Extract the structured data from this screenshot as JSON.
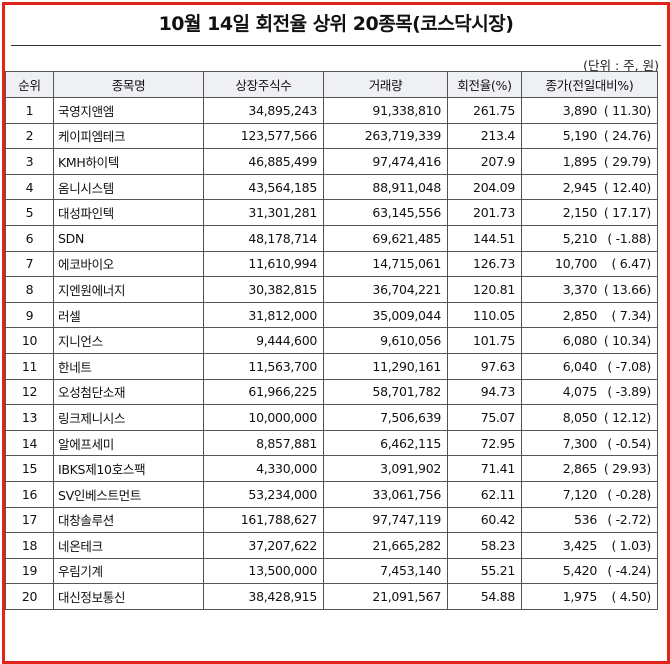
{
  "title": "10월 14일 회전율 상위 20종목(코스닥시장)",
  "unit_note": "(단위 : 주, 원)",
  "headers": [
    "순위",
    "종목명",
    "상장주식수",
    "거래량",
    "회전율(%)",
    "종가(전일대비%)"
  ],
  "rows": [
    {
      "rank": "1",
      "name": "국영지앤엠",
      "listed": "34,895,243",
      "volume": "91,338,810",
      "turnover": "261.75",
      "price": "3,890",
      "change": "( 11.30)"
    },
    {
      "rank": "2",
      "name": "케이피엠테크",
      "listed": "123,577,566",
      "volume": "263,719,339",
      "turnover": "213.4",
      "price": "5,190",
      "change": "( 24.76)"
    },
    {
      "rank": "3",
      "name": "KMH하이텍",
      "listed": "46,885,499",
      "volume": "97,474,416",
      "turnover": "207.9",
      "price": "1,895",
      "change": "( 29.79)"
    },
    {
      "rank": "4",
      "name": "옴니시스템",
      "listed": "43,564,185",
      "volume": "88,911,048",
      "turnover": "204.09",
      "price": "2,945",
      "change": "( 12.40)"
    },
    {
      "rank": "5",
      "name": "대성파인텍",
      "listed": "31,301,281",
      "volume": "63,145,556",
      "turnover": "201.73",
      "price": "2,150",
      "change": "( 17.17)"
    },
    {
      "rank": "6",
      "name": "SDN",
      "listed": "48,178,714",
      "volume": "69,621,485",
      "turnover": "144.51",
      "price": "5,210",
      "change": "( -1.88)"
    },
    {
      "rank": "7",
      "name": "에코바이오",
      "listed": "11,610,994",
      "volume": "14,715,061",
      "turnover": "126.73",
      "price": "10,700",
      "change": "( 6.47)"
    },
    {
      "rank": "8",
      "name": "지엔원에너지",
      "listed": "30,382,815",
      "volume": "36,704,221",
      "turnover": "120.81",
      "price": "3,370",
      "change": "( 13.66)"
    },
    {
      "rank": "9",
      "name": "러셀",
      "listed": "31,812,000",
      "volume": "35,009,044",
      "turnover": "110.05",
      "price": "2,850",
      "change": "( 7.34)"
    },
    {
      "rank": "10",
      "name": "지니언스",
      "listed": "9,444,600",
      "volume": "9,610,056",
      "turnover": "101.75",
      "price": "6,080",
      "change": "( 10.34)"
    },
    {
      "rank": "11",
      "name": "한네트",
      "listed": "11,563,700",
      "volume": "11,290,161",
      "turnover": "97.63",
      "price": "6,040",
      "change": "( -7.08)"
    },
    {
      "rank": "12",
      "name": "오성첨단소재",
      "listed": "61,966,225",
      "volume": "58,701,782",
      "turnover": "94.73",
      "price": "4,075",
      "change": "( -3.89)"
    },
    {
      "rank": "13",
      "name": "링크제니시스",
      "listed": "10,000,000",
      "volume": "7,506,639",
      "turnover": "75.07",
      "price": "8,050",
      "change": "( 12.12)"
    },
    {
      "rank": "14",
      "name": "알에프세미",
      "listed": "8,857,881",
      "volume": "6,462,115",
      "turnover": "72.95",
      "price": "7,300",
      "change": "( -0.54)"
    },
    {
      "rank": "15",
      "name": "IBKS제10호스팩",
      "listed": "4,330,000",
      "volume": "3,091,902",
      "turnover": "71.41",
      "price": "2,865",
      "change": "( 29.93)"
    },
    {
      "rank": "16",
      "name": "SV인베스트먼트",
      "listed": "53,234,000",
      "volume": "33,061,756",
      "turnover": "62.11",
      "price": "7,120",
      "change": "( -0.28)"
    },
    {
      "rank": "17",
      "name": "대창솔루션",
      "listed": "161,788,627",
      "volume": "97,747,119",
      "turnover": "60.42",
      "price": "536",
      "change": "( -2.72)"
    },
    {
      "rank": "18",
      "name": "네온테크",
      "listed": "37,207,622",
      "volume": "21,665,282",
      "turnover": "58.23",
      "price": "3,425",
      "change": "( 1.03)"
    },
    {
      "rank": "19",
      "name": "우림기계",
      "listed": "13,500,000",
      "volume": "7,453,140",
      "turnover": "55.21",
      "price": "5,420",
      "change": "( -4.24)"
    },
    {
      "rank": "20",
      "name": "대신정보통신",
      "listed": "38,428,915",
      "volume": "21,091,567",
      "turnover": "54.88",
      "price": "1,975",
      "change": "( 4.50)"
    }
  ],
  "colors": {
    "border": "#e0261b",
    "header_bg": "#eef0f4"
  }
}
